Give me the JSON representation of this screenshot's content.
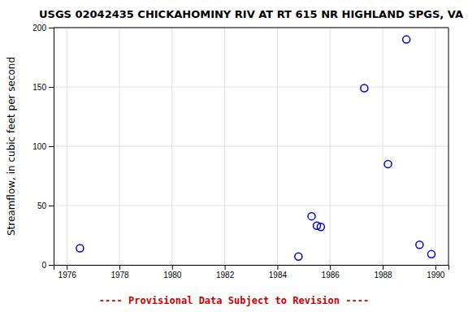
{
  "chart_data": {
    "type": "scatter",
    "title": "USGS 02042435 CHICKAHOMINY RIV AT RT 615 NR HIGHLAND SPGS, VA",
    "y_label": "Streamflow, in cubic feet per second",
    "annotations": [
      "---- Provisional Data Subject to Revision ----"
    ],
    "x": [
      1976.5,
      1984.8,
      1985.3,
      1985.5,
      1985.65,
      1987.3,
      1988.2,
      1988.9,
      1989.4,
      1989.85
    ],
    "values": [
      14,
      7,
      41,
      33,
      32,
      149,
      85,
      190,
      17,
      9
    ],
    "color": "#0000cc",
    "marker": "circle",
    "xlim": [
      1975.5,
      1990.5
    ],
    "xticks": [
      1976,
      1978,
      1980,
      1982,
      1984,
      1986,
      1988,
      1990
    ],
    "ylim": [
      0,
      200
    ],
    "yticks": [
      0,
      50,
      100,
      150,
      200
    ],
    "grid": true
  }
}
